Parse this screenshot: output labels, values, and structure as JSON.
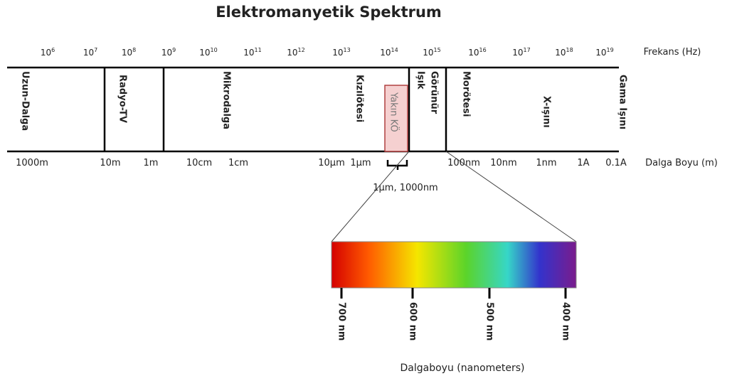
{
  "title": "Elektromanyetik Spektrum",
  "frequency": {
    "label": "Frekans (Hz)",
    "ticks": [
      {
        "base": "10",
        "exp": "6"
      },
      {
        "base": "10",
        "exp": "7"
      },
      {
        "base": "10",
        "exp": "8"
      },
      {
        "base": "10",
        "exp": "9"
      },
      {
        "base": "10",
        "exp": "10"
      },
      {
        "base": "10",
        "exp": "11"
      },
      {
        "base": "10",
        "exp": "12"
      },
      {
        "base": "10",
        "exp": "13"
      },
      {
        "base": "10",
        "exp": "14"
      },
      {
        "base": "10",
        "exp": "15"
      },
      {
        "base": "10",
        "exp": "16"
      },
      {
        "base": "10",
        "exp": "17"
      },
      {
        "base": "10",
        "exp": "18"
      },
      {
        "base": "10",
        "exp": "19"
      }
    ]
  },
  "bands": [
    {
      "label": [
        "Uzun-Dalga"
      ]
    },
    {
      "label": [
        "Radyo-TV"
      ]
    },
    {
      "label": [
        "Mikrodalga"
      ]
    },
    {
      "label": [
        "Kızılötesi"
      ]
    },
    {
      "label": [
        "Yakın KÖ"
      ]
    },
    {
      "label": [
        "Görünür",
        "Işık"
      ]
    },
    {
      "label": [
        "Morötesi"
      ]
    },
    {
      "label": [
        "X-ışını"
      ]
    },
    {
      "label": [
        "Gama Işını"
      ]
    }
  ],
  "wavelength": {
    "label": "Dalga Boyu (m)",
    "ticks": [
      "1000m",
      "10m",
      "1m",
      "10cm",
      "1cm",
      "10µm",
      "1µm",
      "100nm",
      "10nm",
      "1nm",
      "1A",
      "0.1A"
    ]
  },
  "bracket_label": "1µm, 1000nm",
  "visible": {
    "ticks": [
      "700 nm",
      "600 nm",
      "500 nm",
      "400 nm"
    ],
    "axis_label": "Dalgaboyu (nanometers)"
  }
}
